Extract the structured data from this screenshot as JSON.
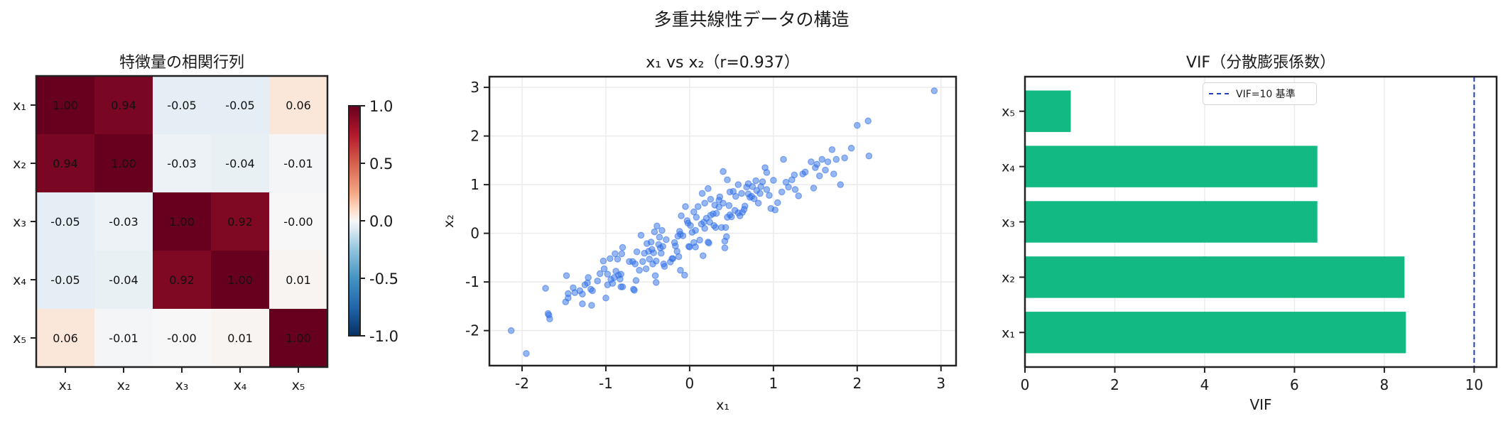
{
  "figure": {
    "suptitle": "多重共線性データの構造"
  },
  "chart_data": [
    {
      "type": "heatmap",
      "title": "特徴量の相関行列",
      "row_labels": [
        "x₁",
        "x₂",
        "x₃",
        "x₄",
        "x₅"
      ],
      "col_labels": [
        "x₁",
        "x₂",
        "x₃",
        "x₄",
        "x₅"
      ],
      "values": [
        [
          1.0,
          0.94,
          -0.05,
          -0.05,
          0.06
        ],
        [
          0.94,
          1.0,
          -0.03,
          -0.04,
          -0.01
        ],
        [
          -0.05,
          -0.03,
          1.0,
          0.92,
          -0.0
        ],
        [
          -0.05,
          -0.04,
          0.92,
          1.0,
          0.01
        ],
        [
          0.06,
          -0.01,
          -0.0,
          0.01,
          1.0
        ]
      ],
      "cell_text": [
        [
          "1.00",
          "0.94",
          "-0.05",
          "-0.05",
          "0.06"
        ],
        [
          "0.94",
          "1.00",
          "-0.03",
          "-0.04",
          "-0.01"
        ],
        [
          "-0.05",
          "-0.03",
          "1.00",
          "0.92",
          "-0.00"
        ],
        [
          "-0.05",
          "-0.04",
          "0.92",
          "1.00",
          "0.01"
        ],
        [
          "0.06",
          "-0.01",
          "-0.00",
          "0.01",
          "1.00"
        ]
      ],
      "colormap": "RdBu_r",
      "vmin": -1.0,
      "vmax": 1.0,
      "colorbar_ticks": [
        "1.0",
        "0.5",
        "0.0",
        "-0.5",
        "-1.0"
      ]
    },
    {
      "type": "scatter",
      "title": "x₁ vs x₂（r=0.937）",
      "xlabel": "x₁",
      "ylabel": "x₂",
      "xlim": [
        -2.39,
        3.18
      ],
      "ylim": [
        -2.72,
        3.22
      ],
      "xticks": [
        "-2",
        "-1",
        "0",
        "1",
        "2",
        "3"
      ],
      "yticks": [
        "3",
        "2",
        "1",
        "0",
        "-1",
        "-2"
      ],
      "grid": true,
      "color": "#2f6fe8",
      "points": [
        [
          -2.13,
          -2.0
        ],
        [
          -1.95,
          -2.47
        ],
        [
          -1.72,
          -1.13
        ],
        [
          -1.68,
          -1.68
        ],
        [
          -1.67,
          -1.76
        ],
        [
          -1.69,
          -1.65
        ],
        [
          -1.47,
          -0.87
        ],
        [
          -1.48,
          -1.41
        ],
        [
          -1.45,
          -1.24
        ],
        [
          -1.45,
          -1.33
        ],
        [
          -1.39,
          -1.12
        ],
        [
          -1.37,
          -1.22
        ],
        [
          -1.31,
          -1.18
        ],
        [
          -1.28,
          -1.25
        ],
        [
          -1.28,
          -1.45
        ],
        [
          -1.25,
          -1.06
        ],
        [
          -1.21,
          -0.91
        ],
        [
          -1.22,
          -1.02
        ],
        [
          -1.18,
          -1.15
        ],
        [
          -1.17,
          -1.48
        ],
        [
          -1.16,
          -1.18
        ],
        [
          -1.1,
          -0.98
        ],
        [
          -1.07,
          -0.83
        ],
        [
          -1.03,
          -0.57
        ],
        [
          -1.02,
          -0.73
        ],
        [
          -1.0,
          -1.33
        ],
        [
          -0.98,
          -0.84
        ],
        [
          -0.98,
          -1.06
        ],
        [
          -0.95,
          -0.52
        ],
        [
          -0.94,
          -0.95
        ],
        [
          -0.92,
          -1.03
        ],
        [
          -0.9,
          -0.91
        ],
        [
          -0.89,
          -0.42
        ],
        [
          -0.88,
          -0.78
        ],
        [
          -0.86,
          -0.53
        ],
        [
          -0.85,
          -0.86
        ],
        [
          -0.83,
          -0.94
        ],
        [
          -0.82,
          -0.84
        ],
        [
          -0.81,
          -0.42
        ],
        [
          -0.8,
          -0.29
        ],
        [
          -0.82,
          -1.1
        ],
        [
          -0.8,
          -1.1
        ],
        [
          -0.72,
          -0.58
        ],
        [
          -0.68,
          -0.58
        ],
        [
          -0.67,
          -1.15
        ],
        [
          -0.66,
          -1.17
        ],
        [
          -0.65,
          -0.63
        ],
        [
          -0.64,
          -0.97
        ],
        [
          -0.63,
          -0.38
        ],
        [
          -0.6,
          -0.76
        ],
        [
          -0.58,
          -0.04
        ],
        [
          -0.56,
          -0.58
        ],
        [
          -0.54,
          -0.41
        ],
        [
          -0.52,
          -0.73
        ],
        [
          -0.51,
          -0.21
        ],
        [
          -0.49,
          -0.37
        ],
        [
          -0.48,
          -0.53
        ],
        [
          -0.46,
          -0.18
        ],
        [
          -0.45,
          -0.33
        ],
        [
          -0.44,
          -0.63
        ],
        [
          -0.43,
          -0.4
        ],
        [
          -0.42,
          0.03
        ],
        [
          -0.41,
          -0.87
        ],
        [
          -0.4,
          -1.01
        ],
        [
          -0.4,
          -0.57
        ],
        [
          -0.39,
          0.15
        ],
        [
          -0.37,
          -0.23
        ],
        [
          -0.36,
          -0.08
        ],
        [
          -0.35,
          -0.3
        ],
        [
          -0.34,
          -0.41
        ],
        [
          -0.33,
          0.06
        ],
        [
          -0.32,
          -0.27
        ],
        [
          -0.31,
          -0.63
        ],
        [
          -0.3,
          -0.68
        ],
        [
          -0.28,
          -0.13
        ],
        [
          -0.23,
          -0.59
        ],
        [
          -0.21,
          -0.52
        ],
        [
          -0.2,
          -0.52
        ],
        [
          -0.18,
          -0.19
        ],
        [
          -0.17,
          -0.26
        ],
        [
          -0.15,
          -0.37
        ],
        [
          -0.14,
          -0.06
        ],
        [
          -0.13,
          -0.48
        ],
        [
          -0.12,
          0.04
        ],
        [
          -0.11,
          -0.02
        ],
        [
          -0.11,
          -0.76
        ],
        [
          -0.1,
          0.36
        ],
        [
          -0.08,
          -0.05
        ],
        [
          -0.06,
          -0.86
        ],
        [
          -0.03,
          0.26
        ],
        [
          -0.02,
          0.21
        ],
        [
          -0.01,
          -0.27
        ],
        [
          0.0,
          -0.28
        ],
        [
          0.01,
          0.16
        ],
        [
          0.03,
          0.02
        ],
        [
          0.05,
          -0.19
        ],
        [
          0.07,
          0.06
        ],
        [
          0.07,
          -0.28
        ],
        [
          0.08,
          0.33
        ],
        [
          0.12,
          -0.14
        ],
        [
          0.14,
          0.19
        ],
        [
          0.16,
          -0.46
        ],
        [
          0.17,
          0.23
        ],
        [
          0.18,
          0.1
        ],
        [
          0.2,
          0.31
        ],
        [
          0.22,
          -0.18
        ],
        [
          0.23,
          -0.2
        ],
        [
          0.24,
          0.23
        ],
        [
          0.25,
          0.37
        ],
        [
          0.28,
          0.4
        ],
        [
          0.29,
          0.16
        ],
        [
          0.31,
          0.12
        ],
        [
          0.32,
          0.41
        ],
        [
          0.35,
          0.54
        ],
        [
          0.38,
          0.12
        ],
        [
          0.4,
          0.62
        ],
        [
          0.42,
          -0.16
        ],
        [
          0.42,
          -0.3
        ],
        [
          0.43,
          0.12
        ],
        [
          0.44,
          -0.07
        ],
        [
          0.45,
          0.33
        ],
        [
          0.47,
          0.57
        ],
        [
          0.48,
          0.38
        ],
        [
          0.5,
          0.34
        ],
        [
          0.52,
          0.86
        ],
        [
          0.54,
          0.47
        ],
        [
          0.55,
          0.76
        ],
        [
          0.58,
          0.42
        ],
        [
          0.6,
          0.36
        ],
        [
          0.63,
          0.43
        ],
        [
          0.65,
          0.49
        ],
        [
          0.66,
          0.56
        ],
        [
          0.68,
          0.95
        ],
        [
          0.7,
          0.81
        ],
        [
          0.72,
          0.74
        ],
        [
          0.74,
          0.76
        ],
        [
          0.75,
          0.96
        ],
        [
          0.77,
          0.71
        ],
        [
          0.79,
          1.08
        ],
        [
          0.8,
          0.88
        ],
        [
          0.82,
          0.62
        ],
        [
          0.84,
          0.82
        ],
        [
          0.85,
          0.96
        ],
        [
          0.87,
          1.06
        ],
        [
          0.9,
          1.35
        ],
        [
          0.92,
          1.25
        ],
        [
          0.95,
          0.78
        ],
        [
          0.97,
          0.51
        ],
        [
          1.0,
          1.09
        ],
        [
          1.02,
          0.48
        ],
        [
          1.05,
          0.63
        ],
        [
          1.1,
          0.85
        ],
        [
          1.12,
          1.52
        ],
        [
          1.15,
          1.05
        ],
        [
          1.18,
          0.95
        ],
        [
          1.22,
          1.1
        ],
        [
          1.26,
          0.9
        ],
        [
          1.3,
          0.77
        ],
        [
          1.35,
          1.22
        ],
        [
          1.38,
          1.26
        ],
        [
          1.45,
          1.47
        ],
        [
          1.48,
          0.93
        ],
        [
          1.5,
          1.35
        ],
        [
          1.52,
          1.42
        ],
        [
          1.55,
          1.18
        ],
        [
          1.58,
          1.52
        ],
        [
          1.62,
          1.3
        ],
        [
          1.65,
          1.47
        ],
        [
          1.7,
          1.72
        ],
        [
          1.72,
          1.22
        ],
        [
          1.8,
          1.0
        ],
        [
          1.85,
          1.55
        ],
        [
          1.93,
          1.75
        ],
        [
          1.75,
          1.52
        ],
        [
          2.0,
          2.22
        ],
        [
          2.13,
          2.31
        ],
        [
          2.14,
          1.59
        ],
        [
          2.92,
          2.93
        ],
        [
          0.1,
          0.55
        ],
        [
          0.18,
          0.62
        ],
        [
          0.25,
          0.7
        ],
        [
          0.35,
          0.68
        ],
        [
          0.48,
          0.85
        ],
        [
          0.62,
          0.82
        ],
        [
          0.58,
          1.0
        ],
        [
          0.45,
          1.1
        ],
        [
          0.92,
          0.9
        ],
        [
          1.25,
          1.2
        ],
        [
          0.3,
          0.58
        ],
        [
          0.05,
          0.44
        ],
        [
          -0.05,
          0.55
        ],
        [
          0.15,
          0.82
        ],
        [
          0.22,
          0.92
        ],
        [
          0.7,
          1.02
        ],
        [
          0.4,
          1.27
        ],
        [
          0.36,
          0.75
        ]
      ]
    },
    {
      "type": "bar",
      "orientation": "horizontal",
      "title": "VIF（分散膨張係数）",
      "xlabel": "VIF",
      "ylabel": "",
      "categories": [
        "x₁",
        "x₂",
        "x₃",
        "x₄",
        "x₅"
      ],
      "values": [
        8.48,
        8.45,
        6.51,
        6.51,
        1.02
      ],
      "color": "#13b983",
      "xlim": [
        0,
        10.5
      ],
      "xticks": [
        "0",
        "2",
        "4",
        "6",
        "8",
        "10"
      ],
      "reference_line": {
        "x": 10,
        "style": "dashed",
        "color": "#1f3fbf",
        "label": "VIF=10 基準"
      },
      "legend": {
        "position": "upper center",
        "entries": [
          "VIF=10 基準"
        ]
      },
      "grid": true
    }
  ]
}
